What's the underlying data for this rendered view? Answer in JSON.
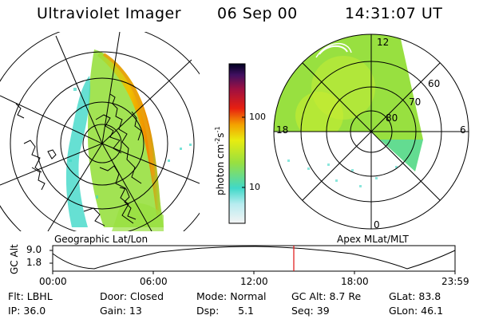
{
  "header": {
    "instrument": "Ultraviolet Imager",
    "date": "06 Sep 00",
    "time": "14:31:07 UT"
  },
  "colorbar": {
    "unit_label": "photon cm",
    "unit_sup1": "-2",
    "unit_mid": "s",
    "unit_sup2": "-1",
    "ticks": [
      "100",
      "10"
    ]
  },
  "polar_plot": {
    "lat_labels": [
      "60",
      "70",
      "80"
    ],
    "mlt_labels": {
      "top": "12",
      "left": "18",
      "right": "6",
      "bottom": "0"
    }
  },
  "panel_labels": {
    "left": "Geographic Lat/Lon",
    "right": "Apex MLat/MLT"
  },
  "orbit_plot": {
    "ylabel": "GC Alt",
    "yticks": [
      "9.0",
      "1.8"
    ],
    "xticks": [
      "00:00",
      "06:00",
      "12:00",
      "18:00",
      "23:59"
    ],
    "current_time_frac": 0.6
  },
  "info": {
    "row1": {
      "flt": "Flt: LBHL",
      "door": "Door: Closed",
      "mode": "Mode: Normal",
      "gcalt": "GC Alt: 8.7 Re",
      "glat": "GLat:  83.8"
    },
    "row2": {
      "ip": "IP: 36.0",
      "gain": "Gain: 13",
      "dsp": "Dsp:      5.1",
      "seq": "Seq: 39",
      "glon": "GLon:  46.1"
    }
  },
  "colors": {
    "marker": "#e01010",
    "colorbar_stops": [
      "#f2f2f2",
      "#40d8c8",
      "#98e040",
      "#f0e000",
      "#f08800",
      "#e01818",
      "#a01040",
      "#301050",
      "#000020"
    ]
  }
}
